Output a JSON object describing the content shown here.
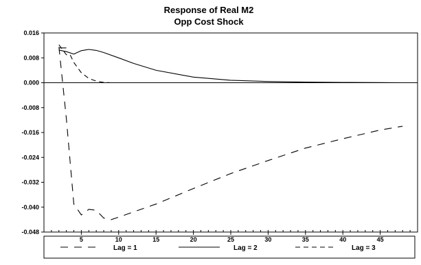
{
  "chart_data": {
    "type": "line",
    "title": "Response of Real M2",
    "subtitle": "Opp Cost Shock",
    "xlabel": "",
    "ylabel": "",
    "xlim": [
      0,
      50
    ],
    "ylim": [
      -0.048,
      0.016
    ],
    "x_ticks": [
      5,
      10,
      15,
      20,
      25,
      30,
      35,
      40,
      45
    ],
    "x_tick_labels": [
      "5",
      "10",
      "15",
      "20",
      "25",
      "30",
      "35",
      "40",
      "45"
    ],
    "y_ticks": [
      0.016,
      0.008,
      0.0,
      -0.008,
      -0.016,
      -0.024,
      -0.032,
      -0.04,
      -0.048
    ],
    "y_tick_labels": [
      "0.016",
      "0.008",
      "0.000",
      "-0.008",
      "-0.016",
      "-0.024",
      "-0.032",
      "-0.040",
      "-0.048"
    ],
    "grid": false,
    "zero_line": true,
    "legend_position": "bottom",
    "series": [
      {
        "name": "Lag = 1",
        "dash": "long",
        "x": [
          2,
          3,
          4,
          5,
          6,
          7,
          8,
          9,
          10,
          15,
          20,
          25,
          30,
          35,
          40,
          45,
          48
        ],
        "y": [
          0.0115,
          -0.0115,
          -0.039,
          -0.0425,
          -0.0407,
          -0.041,
          -0.0435,
          -0.044,
          -0.0432,
          -0.039,
          -0.034,
          -0.0292,
          -0.025,
          -0.021,
          -0.018,
          -0.0152,
          -0.014
        ]
      },
      {
        "name": "Lag = 2",
        "dash": "solid",
        "x": [
          2,
          3,
          4,
          5,
          6,
          7,
          8,
          10,
          12,
          15,
          20,
          25,
          30,
          35,
          40,
          45,
          48
        ],
        "y": [
          0.0105,
          0.01,
          0.0092,
          0.0103,
          0.0107,
          0.0104,
          0.0097,
          0.008,
          0.0062,
          0.004,
          0.0018,
          0.0008,
          0.0004,
          0.0002,
          0.0001,
          5e-05,
          0.0
        ],
        "early_segment": {
          "x": [
            2,
            2.5,
            3
          ],
          "y": [
            0.0112,
            0.0112,
            0.0112
          ]
        }
      },
      {
        "name": "Lag = 3",
        "dash": "medium",
        "x": [
          2,
          3,
          3.5,
          4,
          5,
          6,
          7,
          8,
          9,
          10,
          12,
          15
        ],
        "y": [
          0.0122,
          0.009,
          0.009,
          0.0065,
          0.0032,
          0.0014,
          0.0005,
          0.0001,
          0.0,
          0.0,
          0.0,
          0.0
        ]
      }
    ]
  }
}
